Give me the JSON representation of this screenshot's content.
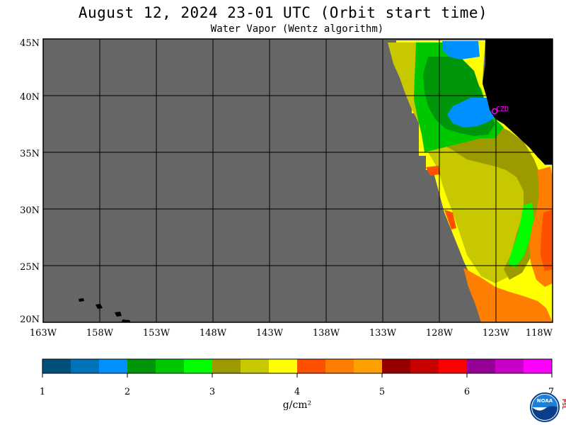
{
  "header": {
    "title": "August 12, 2024  23-01 UTC  (Orbit start time)",
    "subtitle": "Water Vapor (Wentz algorithm)"
  },
  "map": {
    "lon_range": [
      -163,
      -118
    ],
    "lat_range": [
      20,
      45
    ],
    "lat_labels": [
      "45N",
      "40N",
      "35N",
      "30N",
      "25N",
      "20N"
    ],
    "lon_labels": [
      "163W",
      "158W",
      "153W",
      "148W",
      "143W",
      "138W",
      "133W",
      "128W",
      "123W",
      "118W"
    ],
    "station_label": "CZD",
    "no_data_color": "#666666",
    "land_color": "#000000",
    "station_color": "#ff00ff"
  },
  "colorbar": {
    "tick_labels": [
      "1",
      "2",
      "3",
      "4",
      "5",
      "6",
      "7"
    ],
    "unit": "g/cm²",
    "colors": [
      "#00507a",
      "#0073b8",
      "#0090ff",
      "#00960a",
      "#00c800",
      "#00ff00",
      "#9b9b00",
      "#c8c800",
      "#ffff00",
      "#ff5000",
      "#ff7d00",
      "#ffa000",
      "#960000",
      "#c80000",
      "#ff0000",
      "#960096",
      "#c800c8",
      "#ff00ff"
    ]
  },
  "logo": {
    "name": "noaa-logo",
    "text": "NOAA",
    "side_text": "PSL"
  }
}
